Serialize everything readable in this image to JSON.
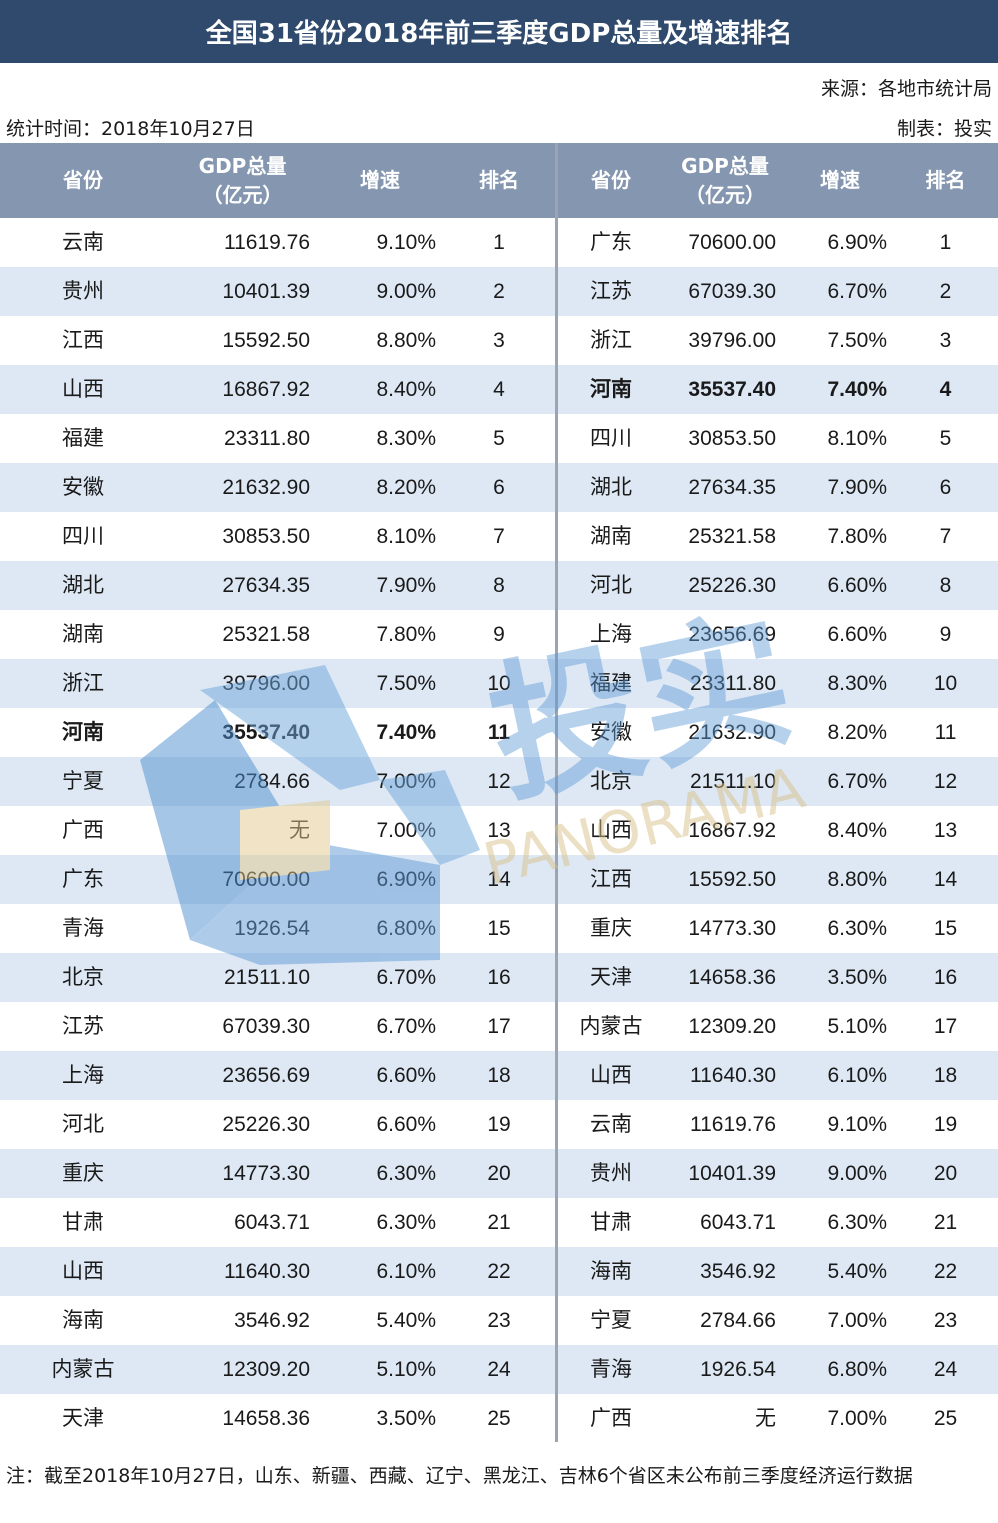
{
  "title": "全国31省份2018年前三季度GDP总量及增速排名",
  "meta": {
    "source": "来源：各地市统计局",
    "stat_time": "统计时间：2018年10月27日",
    "maker": "制表：投实"
  },
  "watermark": {
    "cn": "投实",
    "en": "PANORAMA"
  },
  "left_table": {
    "headers": {
      "province": "省份",
      "gdp_line1": "GDP总量",
      "gdp_line2": "（亿元）",
      "growth": "增速",
      "rank": "排名"
    },
    "rows": [
      {
        "province": "云南",
        "gdp": "11619.76",
        "growth": "9.10%",
        "rank": "1"
      },
      {
        "province": "贵州",
        "gdp": "10401.39",
        "growth": "9.00%",
        "rank": "2"
      },
      {
        "province": "江西",
        "gdp": "15592.50",
        "growth": "8.80%",
        "rank": "3"
      },
      {
        "province": "山西",
        "gdp": "16867.92",
        "growth": "8.40%",
        "rank": "4"
      },
      {
        "province": "福建",
        "gdp": "23311.80",
        "growth": "8.30%",
        "rank": "5"
      },
      {
        "province": "安徽",
        "gdp": "21632.90",
        "growth": "8.20%",
        "rank": "6"
      },
      {
        "province": "四川",
        "gdp": "30853.50",
        "growth": "8.10%",
        "rank": "7"
      },
      {
        "province": "湖北",
        "gdp": "27634.35",
        "growth": "7.90%",
        "rank": "8"
      },
      {
        "province": "湖南",
        "gdp": "25321.58",
        "growth": "7.80%",
        "rank": "9"
      },
      {
        "province": "浙江",
        "gdp": "39796.00",
        "growth": "7.50%",
        "rank": "10"
      },
      {
        "province": "河南",
        "gdp": "35537.40",
        "growth": "7.40%",
        "rank": "11",
        "highlight": true
      },
      {
        "province": "宁夏",
        "gdp": "2784.66",
        "growth": "7.00%",
        "rank": "12"
      },
      {
        "province": "广西",
        "gdp": "无",
        "growth": "7.00%",
        "rank": "13"
      },
      {
        "province": "广东",
        "gdp": "70600.00",
        "growth": "6.90%",
        "rank": "14"
      },
      {
        "province": "青海",
        "gdp": "1926.54",
        "growth": "6.80%",
        "rank": "15"
      },
      {
        "province": "北京",
        "gdp": "21511.10",
        "growth": "6.70%",
        "rank": "16"
      },
      {
        "province": "江苏",
        "gdp": "67039.30",
        "growth": "6.70%",
        "rank": "17"
      },
      {
        "province": "上海",
        "gdp": "23656.69",
        "growth": "6.60%",
        "rank": "18"
      },
      {
        "province": "河北",
        "gdp": "25226.30",
        "growth": "6.60%",
        "rank": "19"
      },
      {
        "province": "重庆",
        "gdp": "14773.30",
        "growth": "6.30%",
        "rank": "20"
      },
      {
        "province": "甘肃",
        "gdp": "6043.71",
        "growth": "6.30%",
        "rank": "21"
      },
      {
        "province": "山西",
        "gdp": "11640.30",
        "growth": "6.10%",
        "rank": "22"
      },
      {
        "province": "海南",
        "gdp": "3546.92",
        "growth": "5.40%",
        "rank": "23"
      },
      {
        "province": "内蒙古",
        "gdp": "12309.20",
        "growth": "5.10%",
        "rank": "24"
      },
      {
        "province": "天津",
        "gdp": "14658.36",
        "growth": "3.50%",
        "rank": "25"
      }
    ]
  },
  "right_table": {
    "headers": {
      "province": "省份",
      "gdp_line1": "GDP总量",
      "gdp_line2": "（亿元）",
      "growth": "增速",
      "rank": "排名"
    },
    "rows": [
      {
        "province": "广东",
        "gdp": "70600.00",
        "growth": "6.90%",
        "rank": "1"
      },
      {
        "province": "江苏",
        "gdp": "67039.30",
        "growth": "6.70%",
        "rank": "2"
      },
      {
        "province": "浙江",
        "gdp": "39796.00",
        "growth": "7.50%",
        "rank": "3"
      },
      {
        "province": "河南",
        "gdp": "35537.40",
        "growth": "7.40%",
        "rank": "4",
        "highlight": true
      },
      {
        "province": "四川",
        "gdp": "30853.50",
        "growth": "8.10%",
        "rank": "5"
      },
      {
        "province": "湖北",
        "gdp": "27634.35",
        "growth": "7.90%",
        "rank": "6"
      },
      {
        "province": "湖南",
        "gdp": "25321.58",
        "growth": "7.80%",
        "rank": "7"
      },
      {
        "province": "河北",
        "gdp": "25226.30",
        "growth": "6.60%",
        "rank": "8"
      },
      {
        "province": "上海",
        "gdp": "23656.69",
        "growth": "6.60%",
        "rank": "9"
      },
      {
        "province": "福建",
        "gdp": "23311.80",
        "growth": "8.30%",
        "rank": "10"
      },
      {
        "province": "安徽",
        "gdp": "21632.90",
        "growth": "8.20%",
        "rank": "11"
      },
      {
        "province": "北京",
        "gdp": "21511.10",
        "growth": "6.70%",
        "rank": "12"
      },
      {
        "province": "山西",
        "gdp": "16867.92",
        "growth": "8.40%",
        "rank": "13"
      },
      {
        "province": "江西",
        "gdp": "15592.50",
        "growth": "8.80%",
        "rank": "14"
      },
      {
        "province": "重庆",
        "gdp": "14773.30",
        "growth": "6.30%",
        "rank": "15"
      },
      {
        "province": "天津",
        "gdp": "14658.36",
        "growth": "3.50%",
        "rank": "16"
      },
      {
        "province": "内蒙古",
        "gdp": "12309.20",
        "growth": "5.10%",
        "rank": "17"
      },
      {
        "province": "山西",
        "gdp": "11640.30",
        "growth": "6.10%",
        "rank": "18"
      },
      {
        "province": "云南",
        "gdp": "11619.76",
        "growth": "9.10%",
        "rank": "19"
      },
      {
        "province": "贵州",
        "gdp": "10401.39",
        "growth": "9.00%",
        "rank": "20"
      },
      {
        "province": "甘肃",
        "gdp": "6043.71",
        "growth": "6.30%",
        "rank": "21"
      },
      {
        "province": "海南",
        "gdp": "3546.92",
        "growth": "5.40%",
        "rank": "22"
      },
      {
        "province": "宁夏",
        "gdp": "2784.66",
        "growth": "7.00%",
        "rank": "23"
      },
      {
        "province": "青海",
        "gdp": "1926.54",
        "growth": "6.80%",
        "rank": "24"
      },
      {
        "province": "广西",
        "gdp": "无",
        "growth": "7.00%",
        "rank": "25"
      }
    ]
  },
  "note": "注：截至2018年10月27日，山东、新疆、西藏、辽宁、黑龙江、吉林6个省区未公布前三季度经济运行数据",
  "colors": {
    "title_bg": "#2f4a6c",
    "header_bg": "#8597b0",
    "alt_row": "#dde8f4",
    "watermark_blue": "#4f8fd0",
    "watermark_gold": "#d8c08a"
  }
}
